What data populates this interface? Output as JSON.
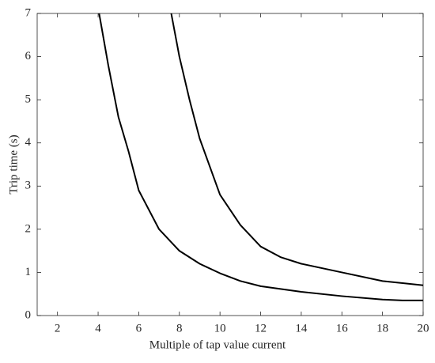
{
  "chart_data": {
    "type": "line",
    "xlabel": "Multiple of tap value current",
    "ylabel": "Trip time (s)",
    "series": [
      {
        "color": "#000000",
        "x": [
          4.05,
          4.5,
          5,
          5.5,
          6,
          7,
          8,
          9,
          10,
          11,
          12,
          14,
          16,
          18,
          19,
          20
        ],
        "values": [
          7,
          5.8,
          4.6,
          3.8,
          2.9,
          2.0,
          1.5,
          1.2,
          0.98,
          0.8,
          0.68,
          0.55,
          0.45,
          0.37,
          0.35,
          0.35
        ]
      },
      {
        "color": "#000000",
        "x": [
          7.6,
          8,
          8.5,
          9,
          10,
          11,
          12,
          13,
          14,
          16,
          18,
          20
        ],
        "values": [
          7,
          6.0,
          5.0,
          4.1,
          2.8,
          2.1,
          1.6,
          1.35,
          1.2,
          1.0,
          0.8,
          0.7
        ]
      }
    ],
    "xlim": [
      1,
      20
    ],
    "xticks": [
      2,
      4,
      6,
      8,
      10,
      12,
      14,
      16,
      18,
      20
    ],
    "ylim": [
      0,
      7
    ],
    "yticks": [
      0,
      1,
      2,
      3,
      4,
      5,
      6,
      7
    ],
    "grid": false
  }
}
